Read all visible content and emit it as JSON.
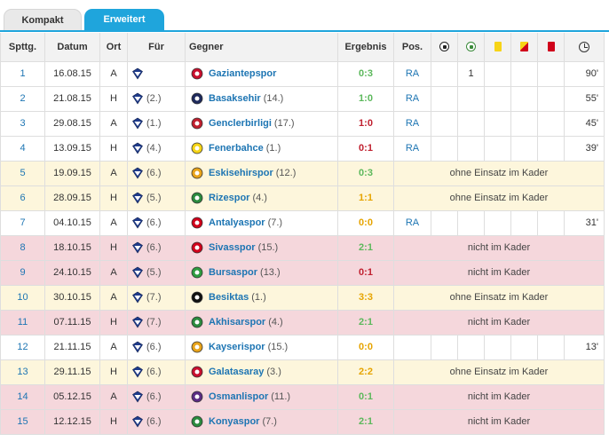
{
  "tabs": [
    {
      "label": "Kompakt",
      "active": false
    },
    {
      "label": "Erweitert",
      "active": true
    }
  ],
  "header": {
    "matchday": "Spttg.",
    "date": "Datum",
    "venue": "Ort",
    "for": "Für",
    "opponent": "Gegner",
    "result": "Ergebnis",
    "position": "Pos.",
    "goals_icon": "football-icon",
    "assists_icon": "assist-icon",
    "yellow_icon": "yellow-card-icon",
    "yellow_red_icon": "yellow-red-card-icon",
    "red_icon": "red-card-icon",
    "minutes_icon": "clock-icon"
  },
  "colors": {
    "accent": "#1fa5dc",
    "link": "#1d75b3",
    "win": "#5cb85c",
    "draw": "#e6a400",
    "loss": "#c0202f",
    "bench_row": "#fdf6dc",
    "out_row": "#f5d7dc"
  },
  "rows": [
    {
      "matchday": "1",
      "date": "16.08.15",
      "venue": "A",
      "for_rank": "",
      "opp_rank": "",
      "opponent": "Gaziantepspor",
      "opp_color": "#c8102e",
      "result": "0:3",
      "res_class": "res-win",
      "type": "played",
      "position": "RA",
      "goals": "",
      "assists": "1",
      "yellow": "",
      "yellowred": "",
      "red": "",
      "minutes": "90'"
    },
    {
      "matchday": "2",
      "date": "21.08.15",
      "venue": "H",
      "for_rank": "(2.)",
      "opp_rank": "(14.)",
      "opponent": "Basaksehir",
      "opp_color": "#1e2a5c",
      "result": "1:0",
      "res_class": "res-win",
      "type": "played",
      "position": "RA",
      "goals": "",
      "assists": "",
      "yellow": "",
      "yellowred": "",
      "red": "",
      "minutes": "55'"
    },
    {
      "matchday": "3",
      "date": "29.08.15",
      "venue": "A",
      "for_rank": "(1.)",
      "opp_rank": "(17.)",
      "opponent": "Genclerbirligi",
      "opp_color": "#c0202f",
      "result": "1:0",
      "res_class": "res-loss",
      "type": "played",
      "position": "RA",
      "goals": "",
      "assists": "",
      "yellow": "",
      "yellowred": "",
      "red": "",
      "minutes": "45'"
    },
    {
      "matchday": "4",
      "date": "13.09.15",
      "venue": "H",
      "for_rank": "(4.)",
      "opp_rank": "(1.)",
      "opponent": "Fenerbahce",
      "opp_color": "#f5d416",
      "result": "0:1",
      "res_class": "res-loss",
      "type": "played",
      "position": "RA",
      "goals": "",
      "assists": "",
      "yellow": "",
      "yellowred": "",
      "red": "",
      "minutes": "39'"
    },
    {
      "matchday": "5",
      "date": "19.09.15",
      "venue": "A",
      "for_rank": "(6.)",
      "opp_rank": "(12.)",
      "opponent": "Eskisehirspor",
      "opp_color": "#e8a31a",
      "result": "0:3",
      "res_class": "res-win",
      "type": "bench",
      "status": "ohne Einsatz im Kader"
    },
    {
      "matchday": "6",
      "date": "28.09.15",
      "venue": "H",
      "for_rank": "(5.)",
      "opp_rank": "(4.)",
      "opponent": "Rizespor",
      "opp_color": "#2b8a3e",
      "result": "1:1",
      "res_class": "res-draw",
      "type": "bench",
      "status": "ohne Einsatz im Kader"
    },
    {
      "matchday": "7",
      "date": "04.10.15",
      "venue": "A",
      "for_rank": "(6.)",
      "opp_rank": "(7.)",
      "opponent": "Antalyaspor",
      "opp_color": "#d0021b",
      "result": "0:0",
      "res_class": "res-draw",
      "type": "played",
      "position": "RA",
      "goals": "",
      "assists": "",
      "yellow": "",
      "yellowred": "",
      "red": "",
      "minutes": "31'"
    },
    {
      "matchday": "8",
      "date": "18.10.15",
      "venue": "H",
      "for_rank": "(6.)",
      "opp_rank": "(15.)",
      "opponent": "Sivasspor",
      "opp_color": "#d0021b",
      "result": "2:1",
      "res_class": "res-win",
      "type": "out",
      "status": "nicht im Kader"
    },
    {
      "matchday": "9",
      "date": "24.10.15",
      "venue": "A",
      "for_rank": "(5.)",
      "opp_rank": "(13.)",
      "opponent": "Bursaspor",
      "opp_color": "#2e9b3f",
      "result": "0:1",
      "res_class": "res-loss",
      "type": "out",
      "status": "nicht im Kader"
    },
    {
      "matchday": "10",
      "date": "30.10.15",
      "venue": "A",
      "for_rank": "(7.)",
      "opp_rank": "(1.)",
      "opponent": "Besiktas",
      "opp_color": "#111111",
      "result": "3:3",
      "res_class": "res-draw",
      "type": "bench",
      "status": "ohne Einsatz im Kader"
    },
    {
      "matchday": "11",
      "date": "07.11.15",
      "venue": "H",
      "for_rank": "(7.)",
      "opp_rank": "(4.)",
      "opponent": "Akhisarspor",
      "opp_color": "#2b8a3e",
      "result": "2:1",
      "res_class": "res-win",
      "type": "out",
      "status": "nicht im Kader"
    },
    {
      "matchday": "12",
      "date": "21.11.15",
      "venue": "A",
      "for_rank": "(6.)",
      "opp_rank": "(15.)",
      "opponent": "Kayserispor",
      "opp_color": "#e8a31a",
      "result": "0:0",
      "res_class": "res-draw",
      "type": "played",
      "position": "",
      "goals": "",
      "assists": "",
      "yellow": "",
      "yellowred": "",
      "red": "",
      "minutes": "13'"
    },
    {
      "matchday": "13",
      "date": "29.11.15",
      "venue": "H",
      "for_rank": "(6.)",
      "opp_rank": "(3.)",
      "opponent": "Galatasaray",
      "opp_color": "#c8102e",
      "result": "2:2",
      "res_class": "res-draw",
      "type": "bench",
      "status": "ohne Einsatz im Kader"
    },
    {
      "matchday": "14",
      "date": "05.12.15",
      "venue": "A",
      "for_rank": "(6.)",
      "opp_rank": "(11.)",
      "opponent": "Osmanlispor",
      "opp_color": "#5b2c83",
      "result": "0:1",
      "res_class": "res-win",
      "type": "out",
      "status": "nicht im Kader"
    },
    {
      "matchday": "15",
      "date": "12.12.15",
      "venue": "H",
      "for_rank": "(6.)",
      "opp_rank": "(7.)",
      "opponent": "Konyaspor",
      "opp_color": "#2b8a3e",
      "result": "2:1",
      "res_class": "res-win",
      "type": "out",
      "status": "nicht im Kader"
    }
  ]
}
